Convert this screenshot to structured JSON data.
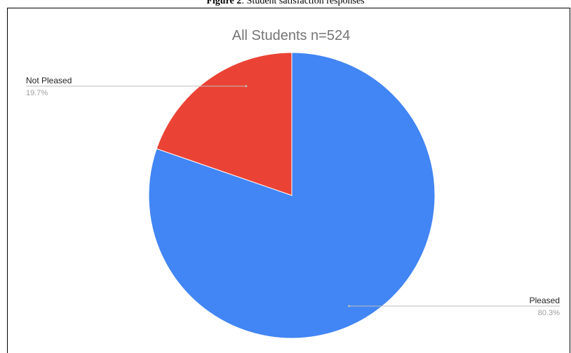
{
  "figure": {
    "label": "Figure 2",
    "caption": ": Student satisfaction responses"
  },
  "chart_data": {
    "type": "pie",
    "title": "All Students n=524",
    "slices": [
      {
        "label": "Pleased",
        "percent_label": "80.3%",
        "value": 80.3,
        "color": "#4285f4"
      },
      {
        "label": "Not Pleased",
        "percent_label": "19.7%",
        "value": 19.7,
        "color": "#ea4335"
      }
    ],
    "label_color": "#222222",
    "percent_color": "#9e9e9e",
    "leader_color": "#bdbdbd"
  }
}
